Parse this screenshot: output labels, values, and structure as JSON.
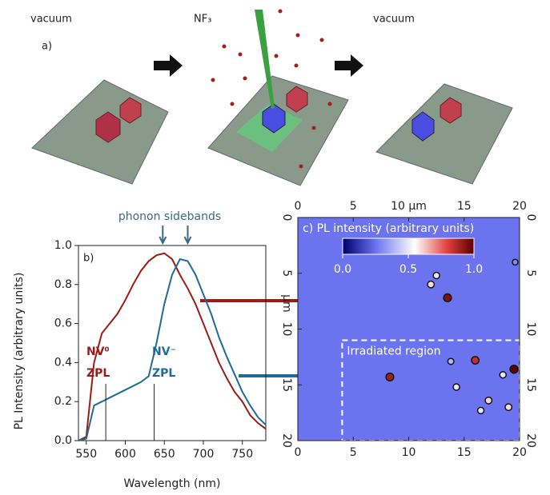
{
  "panel_a": {
    "label": "a)",
    "steps": [
      "vacuum",
      "NF₃",
      "vacuum"
    ]
  },
  "chart_data": [
    {
      "type": "line",
      "label": "b)",
      "xlabel": "Wavelength (nm)",
      "ylabel": "PL Intensity (arbitrary units)",
      "xlim": [
        540,
        780
      ],
      "ylim": [
        0,
        1.0
      ],
      "xticks": [
        550,
        600,
        650,
        700,
        750
      ],
      "yticks": [
        {
          "value": 0,
          "label": "0.0"
        },
        0.2,
        0.4,
        0.6,
        0.8,
        {
          "value": 1,
          "label": "1.0"
        }
      ],
      "x": [
        540,
        550,
        560,
        570,
        580,
        590,
        600,
        610,
        620,
        630,
        640,
        650,
        660,
        670,
        680,
        690,
        700,
        710,
        720,
        730,
        740,
        750,
        760,
        770,
        780
      ],
      "series": [
        {
          "color": "#9b1c14",
          "values": [
            0,
            0.02,
            0.4,
            0.55,
            0.6,
            0.65,
            0.72,
            0.8,
            0.87,
            0.92,
            0.95,
            0.96,
            0.93,
            0.85,
            0.78,
            0.7,
            0.6,
            0.5,
            0.4,
            0.32,
            0.25,
            0.2,
            0.13,
            0.09,
            0.06
          ]
        },
        {
          "color": "#1f6a99",
          "values": [
            0,
            0.01,
            0.18,
            0.2,
            0.22,
            0.24,
            0.26,
            0.28,
            0.3,
            0.33,
            0.5,
            0.7,
            0.85,
            0.93,
            0.92,
            0.85,
            0.75,
            0.65,
            0.53,
            0.43,
            0.34,
            0.25,
            0.18,
            0.12,
            0.08
          ]
        }
      ],
      "annotations": {
        "sidebands": "phonon sidebands",
        "nv0": "NV⁰",
        "nv0_zpl": "ZPL",
        "nvm": "NV⁻",
        "nvm_zpl": "ZPL"
      },
      "zpl_lines": [
        575,
        637
      ],
      "sideband_arrows": [
        648,
        680
      ]
    },
    {
      "type": "heatmap",
      "title": "c) PL intensity (arbitrary units)",
      "ylabel": "μm",
      "region_label": "Irradiated region",
      "xlim": [
        0,
        20
      ],
      "ylim": [
        0,
        20
      ],
      "xticks": [
        0,
        5,
        10,
        15,
        20
      ],
      "x2ticks": [
        0,
        5,
        {
          "value": 10,
          "label": "10 μm"
        },
        15,
        20
      ],
      "yticks": [
        0,
        5,
        10,
        15,
        20
      ],
      "colorbar_ticks": [
        {
          "value": 0,
          "label": "0.0"
        },
        0.5,
        {
          "value": 1,
          "label": "1.0"
        }
      ],
      "background": 0.25,
      "region": {
        "x": [
          4,
          20
        ],
        "y": [
          11,
          20
        ]
      },
      "points": [
        {
          "x": 13.5,
          "y": 7.2,
          "value": 0.95
        },
        {
          "x": 8.3,
          "y": 14.3,
          "value": 0.9
        },
        {
          "x": 16,
          "y": 12.8,
          "value": 0.85
        },
        {
          "x": 19.5,
          "y": 13.6,
          "value": 1.0
        },
        {
          "x": 12.5,
          "y": 5.2,
          "value": 0.5
        },
        {
          "x": 12,
          "y": 6,
          "value": 0.6
        },
        {
          "x": 14.3,
          "y": 15.2,
          "value": 0.5
        },
        {
          "x": 17.2,
          "y": 16.4,
          "value": 0.6
        },
        {
          "x": 13.8,
          "y": 12.9,
          "value": 0.4
        },
        {
          "x": 18.5,
          "y": 14.1,
          "value": 0.5
        },
        {
          "x": 19,
          "y": 17,
          "value": 0.6
        },
        {
          "x": 16.5,
          "y": 17.3,
          "value": 0.5
        },
        {
          "x": 19.6,
          "y": 4,
          "value": 0.3
        }
      ]
    }
  ]
}
